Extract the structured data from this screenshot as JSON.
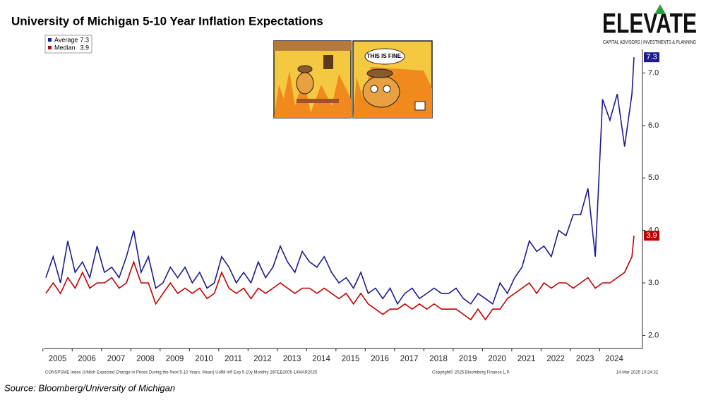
{
  "chart_data": {
    "type": "line",
    "title": "University of Michigan 5-10 Year Inflation Expectations",
    "source": "Source: Bloomberg/University of Michigan",
    "footer_left": "CONSPSME Index (UMich Expected Change in Prices During the Next 5-10 Years: Mean) UofM Infl Exp 5-10y  Monthly 26FEB2005-14MAR2025",
    "footer_center": "Copyright© 2025 Bloomberg Finance L.P.",
    "footer_right": "14-Mar-2025 10:24:32",
    "logo": "ELEVATE",
    "logo_tagline": "CAPITAL ADVISORS | INVESTMENTS & PLANNING",
    "meme_caption": "THIS IS FINE.",
    "x": [
      2005.1,
      2005.35,
      2005.6,
      2005.85,
      2006.1,
      2006.35,
      2006.6,
      2006.85,
      2007.1,
      2007.35,
      2007.6,
      2007.85,
      2008.1,
      2008.35,
      2008.6,
      2008.85,
      2009.1,
      2009.35,
      2009.6,
      2009.85,
      2010.1,
      2010.35,
      2010.6,
      2010.85,
      2011.1,
      2011.35,
      2011.6,
      2011.85,
      2012.1,
      2012.35,
      2012.6,
      2012.85,
      2013.1,
      2013.35,
      2013.6,
      2013.85,
      2014.1,
      2014.35,
      2014.6,
      2014.85,
      2015.1,
      2015.35,
      2015.6,
      2015.85,
      2016.1,
      2016.35,
      2016.6,
      2016.85,
      2017.1,
      2017.35,
      2017.6,
      2017.85,
      2018.1,
      2018.35,
      2018.6,
      2018.85,
      2019.1,
      2019.35,
      2019.6,
      2019.85,
      2020.1,
      2020.35,
      2020.6,
      2020.85,
      2021.1,
      2021.35,
      2021.6,
      2021.85,
      2022.1,
      2022.35,
      2022.6,
      2022.85,
      2023.1,
      2023.35,
      2023.6,
      2023.85,
      2024.1,
      2024.35,
      2024.6,
      2024.85,
      2025.1,
      2025.17
    ],
    "series": [
      {
        "name": "Average",
        "color": "#1c1c8f",
        "values": [
          3.1,
          3.5,
          3.0,
          3.8,
          3.2,
          3.4,
          3.1,
          3.7,
          3.2,
          3.3,
          3.1,
          3.5,
          4.0,
          3.2,
          3.5,
          2.9,
          3.0,
          3.3,
          3.1,
          3.3,
          3.0,
          3.2,
          2.9,
          3.0,
          3.5,
          3.3,
          3.0,
          3.2,
          3.0,
          3.4,
          3.1,
          3.3,
          3.7,
          3.4,
          3.2,
          3.6,
          3.4,
          3.3,
          3.5,
          3.2,
          3.0,
          3.1,
          2.9,
          3.2,
          2.8,
          2.9,
          2.7,
          2.9,
          2.6,
          2.8,
          2.9,
          2.7,
          2.8,
          2.9,
          2.8,
          2.8,
          2.9,
          2.7,
          2.6,
          2.8,
          2.7,
          2.6,
          3.0,
          2.8,
          3.1,
          3.3,
          3.8,
          3.6,
          3.7,
          3.5,
          4.0,
          3.9,
          4.3,
          4.3,
          4.8,
          3.5,
          6.5,
          6.1,
          6.6,
          5.6,
          6.6,
          7.3
        ]
      },
      {
        "name": "Median",
        "color": "#c00000",
        "values": [
          2.8,
          3.0,
          2.8,
          3.1,
          2.9,
          3.2,
          2.9,
          3.0,
          3.0,
          3.1,
          2.9,
          3.0,
          3.4,
          3.0,
          3.0,
          2.6,
          2.8,
          3.0,
          2.8,
          2.9,
          2.8,
          2.9,
          2.7,
          2.8,
          3.2,
          2.9,
          2.8,
          2.9,
          2.7,
          2.9,
          2.8,
          2.9,
          3.0,
          2.9,
          2.8,
          2.9,
          2.9,
          2.8,
          2.9,
          2.8,
          2.7,
          2.8,
          2.6,
          2.8,
          2.6,
          2.5,
          2.4,
          2.5,
          2.5,
          2.6,
          2.5,
          2.6,
          2.5,
          2.6,
          2.5,
          2.5,
          2.5,
          2.4,
          2.3,
          2.5,
          2.3,
          2.5,
          2.5,
          2.7,
          2.8,
          2.9,
          3.0,
          2.8,
          3.0,
          2.9,
          3.0,
          3.0,
          2.9,
          3.0,
          3.1,
          2.9,
          3.0,
          3.0,
          3.1,
          3.2,
          3.5,
          3.9
        ]
      }
    ],
    "xlim": [
      2005.03,
      2025.46
    ],
    "xticks": [
      2005,
      2006,
      2007,
      2008,
      2009,
      2010,
      2011,
      2012,
      2013,
      2014,
      2015,
      2016,
      2017,
      2018,
      2019,
      2020,
      2021,
      2022,
      2023,
      2024
    ],
    "ylim": [
      1.75,
      7.45
    ],
    "yticks": [
      {
        "value": 2,
        "label": "2.0"
      },
      {
        "value": 3,
        "label": "3.0"
      },
      {
        "value": 4,
        "label": "4.0"
      },
      {
        "value": 5,
        "label": "5.0"
      },
      {
        "value": 6,
        "label": "6.0"
      },
      {
        "value": 7,
        "label": "7.0"
      }
    ],
    "legend": "top-left"
  }
}
